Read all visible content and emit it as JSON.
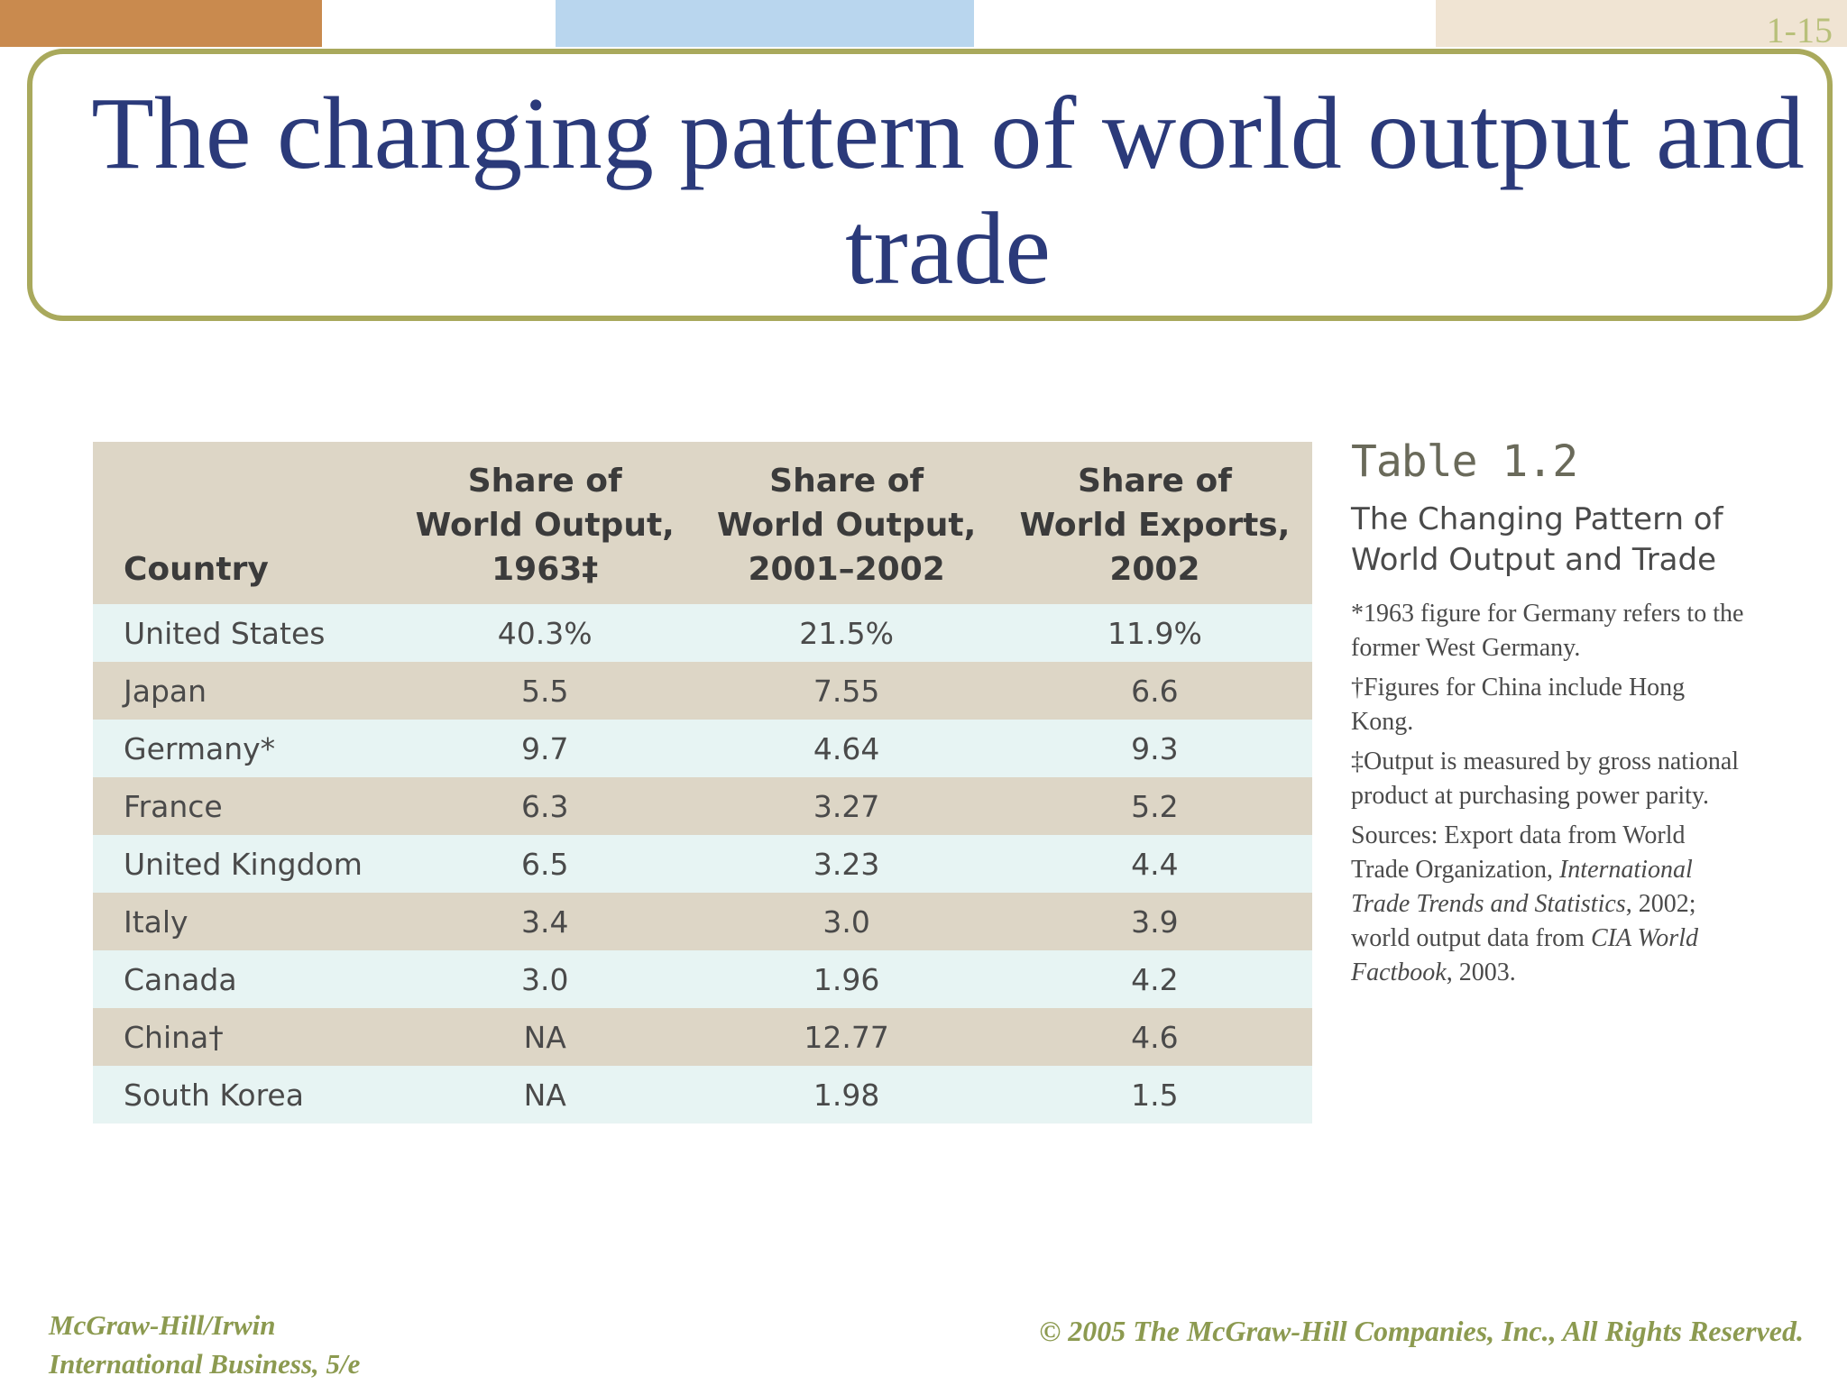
{
  "slide": {
    "number": "1-15",
    "title": "The changing pattern of world output and trade"
  },
  "colors": {
    "title": "#2b3a7a",
    "border": "#a9a95c",
    "footer": "#8c9a50",
    "header_bg": "#ddd6c6",
    "row_light": "#e7f4f3",
    "row_dark": "#ddd6c6"
  },
  "table": {
    "headers": [
      {
        "lines": [
          "Country"
        ]
      },
      {
        "lines": [
          "Share of",
          "World Output,",
          "1963‡"
        ]
      },
      {
        "lines": [
          "Share of",
          "World Output,",
          "2001–2002"
        ]
      },
      {
        "lines": [
          "Share of",
          "World Exports,",
          "2002"
        ]
      }
    ],
    "rows": [
      [
        "United States",
        "40.3%",
        "21.5%",
        "11.9%"
      ],
      [
        "Japan",
        "5.5",
        "7.55",
        "6.6"
      ],
      [
        "Germany*",
        "9.7",
        "4.64",
        "9.3"
      ],
      [
        "France",
        "6.3",
        "3.27",
        "5.2"
      ],
      [
        "United Kingdom",
        "6.5",
        "3.23",
        "4.4"
      ],
      [
        "Italy",
        "3.4",
        "3.0",
        "3.9"
      ],
      [
        "Canada",
        "3.0",
        "1.96",
        "4.2"
      ],
      [
        "China†",
        "NA",
        "12.77",
        "4.6"
      ],
      [
        "South Korea",
        "NA",
        "1.98",
        "1.5"
      ]
    ]
  },
  "side": {
    "table_label": "Table 1.2",
    "caption_line1": "The Changing Pattern of",
    "caption_line2": "World Output and Trade",
    "note_germany": "*1963 figure for Germany refers to the former West Germany.",
    "note_china": "†Figures for China include Hong Kong.",
    "note_output": "‡Output is measured by gross national product at purchasing power parity.",
    "sources_a": "Sources: Export data from World Trade Organization, ",
    "sources_b": "International Trade Trends and Statistics",
    "sources_c": ", 2002; world output data from ",
    "sources_d": "CIA World Factbook",
    "sources_e": ", 2003."
  },
  "footer": {
    "publisher": "McGraw-Hill/Irwin",
    "book": "International Business, 5/e",
    "copyright": "© 2005 The McGraw-Hill Companies, Inc., All Rights Reserved."
  }
}
